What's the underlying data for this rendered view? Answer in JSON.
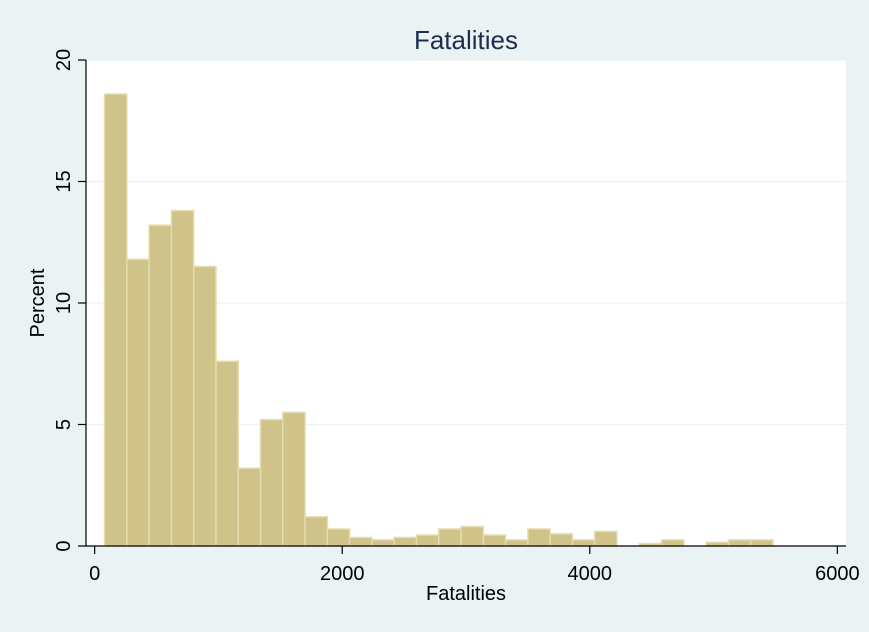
{
  "chart_data": {
    "type": "bar",
    "title": "Fatalities",
    "xlabel": "Fatalities",
    "ylabel": "Percent",
    "xlim": [
      -70,
      6070
    ],
    "ylim": [
      0,
      20
    ],
    "x_ticks": [
      0,
      2000,
      4000,
      6000
    ],
    "y_ticks": [
      0,
      5,
      10,
      15,
      20
    ],
    "grid": true,
    "bin_width": 180,
    "bin_starts": [
      80,
      260,
      440,
      620,
      800,
      980,
      1160,
      1340,
      1520,
      1700,
      1880,
      2060,
      2240,
      2420,
      2600,
      2780,
      2960,
      3140,
      3320,
      3500,
      3680,
      3860,
      4040,
      4220,
      4400,
      4580,
      4760,
      4940,
      5120,
      5300
    ],
    "values": [
      18.6,
      11.8,
      13.2,
      13.8,
      11.5,
      7.6,
      3.2,
      5.2,
      5.5,
      1.2,
      0.7,
      0.35,
      0.25,
      0.35,
      0.45,
      0.7,
      0.8,
      0.45,
      0.25,
      0.7,
      0.5,
      0.25,
      0.6,
      0.0,
      0.1,
      0.25,
      0.0,
      0.15,
      0.25,
      0.25
    ],
    "colors": {
      "bar_fill": "#cfc38a",
      "bar_edge": "#e4dcae",
      "plot_bg": "#ffffff",
      "outer_bg": "#eaf2f3",
      "title": "#1e2d4f"
    }
  }
}
